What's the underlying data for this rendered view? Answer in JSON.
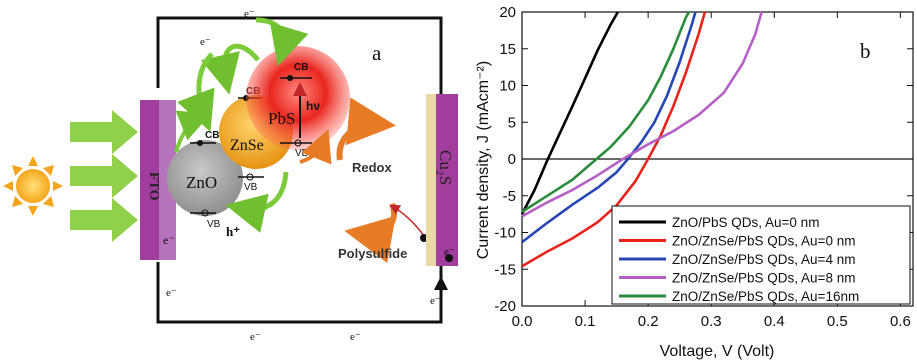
{
  "panel_a": {
    "label": "a",
    "fto": "FTO",
    "zno": "ZnO",
    "znse": "ZnSe",
    "pbs": "PbS",
    "cu2s": "Cu₂S",
    "cb": "CB",
    "vb": "VB",
    "hv": "hν",
    "h_plus": "h⁺",
    "electron": "e⁻",
    "redox": "Redox",
    "polysulfide": "Polysulfide",
    "icons": [
      "sun-icon",
      "light-arrow-icon",
      "redox-cycle-icon"
    ],
    "colors": {
      "fto": "#a13d9c",
      "zno": "#a3a3a3",
      "znse": "#f0a21b",
      "pbs": "#e8261f",
      "arrow_green": "#7ccb3a",
      "arrow_orange": "#e77b26",
      "sun": "#f5b31b"
    }
  },
  "chart_data": {
    "type": "line",
    "panel_label": "b",
    "xlabel": "Voltage, V (Volt)",
    "ylabel": "Current density, J (mAcm⁻²)",
    "xlim": [
      0.0,
      0.62
    ],
    "ylim": [
      -20,
      20
    ],
    "xticks": [
      "0.0",
      "0.1",
      "0.2",
      "0.3",
      "0.4",
      "0.5",
      "0.6"
    ],
    "yticks": [
      "-20",
      "-15",
      "-10",
      "-5",
      "0",
      "5",
      "10",
      "15",
      "20"
    ],
    "grid": false,
    "legend_position": "bottom-right",
    "series": [
      {
        "name": "ZnO/PbS QDs, Au=0 nm",
        "color": "#000000",
        "points": [
          [
            0.0,
            -7.5
          ],
          [
            0.02,
            -4.2
          ],
          [
            0.04,
            -0.2
          ],
          [
            0.06,
            3.5
          ],
          [
            0.08,
            7.2
          ],
          [
            0.1,
            11.0
          ],
          [
            0.12,
            14.8
          ],
          [
            0.14,
            18.2
          ],
          [
            0.152,
            20.0
          ]
        ]
      },
      {
        "name": "ZnO/ZnSe/PbS QDs, Au=0 nm",
        "color": "#e8231c",
        "points": [
          [
            0.0,
            -14.6
          ],
          [
            0.04,
            -12.6
          ],
          [
            0.08,
            -10.8
          ],
          [
            0.12,
            -8.6
          ],
          [
            0.15,
            -6.3
          ],
          [
            0.18,
            -3.0
          ],
          [
            0.2,
            0.0
          ],
          [
            0.22,
            3.2
          ],
          [
            0.24,
            7.2
          ],
          [
            0.26,
            11.8
          ],
          [
            0.28,
            17.0
          ],
          [
            0.29,
            20.0
          ]
        ]
      },
      {
        "name": "ZnO/ZnSe/PbS QDs, Au=4 nm",
        "color": "#2746b5",
        "points": [
          [
            0.0,
            -11.3
          ],
          [
            0.04,
            -8.7
          ],
          [
            0.08,
            -6.2
          ],
          [
            0.12,
            -3.9
          ],
          [
            0.15,
            -1.8
          ],
          [
            0.17,
            0.2
          ],
          [
            0.19,
            2.4
          ],
          [
            0.21,
            5.0
          ],
          [
            0.23,
            8.6
          ],
          [
            0.25,
            13.2
          ],
          [
            0.27,
            18.5
          ],
          [
            0.275,
            20.0
          ]
        ]
      },
      {
        "name": "ZnO/ZnSe/PbS QDs, Au=8 nm",
        "color": "#b65fc7",
        "points": [
          [
            0.0,
            -7.8
          ],
          [
            0.04,
            -5.9
          ],
          [
            0.08,
            -4.2
          ],
          [
            0.12,
            -2.2
          ],
          [
            0.16,
            0.0
          ],
          [
            0.2,
            2.0
          ],
          [
            0.24,
            3.8
          ],
          [
            0.28,
            6.0
          ],
          [
            0.32,
            9.0
          ],
          [
            0.35,
            13.0
          ],
          [
            0.37,
            17.0
          ],
          [
            0.38,
            20.0
          ]
        ]
      },
      {
        "name": "ZnO/ZnSe/PbS QDs, Au=16nm",
        "color": "#2a8c3c",
        "points": [
          [
            0.0,
            -7.2
          ],
          [
            0.04,
            -5.0
          ],
          [
            0.08,
            -2.8
          ],
          [
            0.11,
            -0.6
          ],
          [
            0.14,
            1.6
          ],
          [
            0.17,
            4.4
          ],
          [
            0.2,
            8.0
          ],
          [
            0.22,
            11.2
          ],
          [
            0.24,
            15.0
          ],
          [
            0.26,
            19.3
          ],
          [
            0.265,
            20.0
          ]
        ]
      }
    ]
  }
}
